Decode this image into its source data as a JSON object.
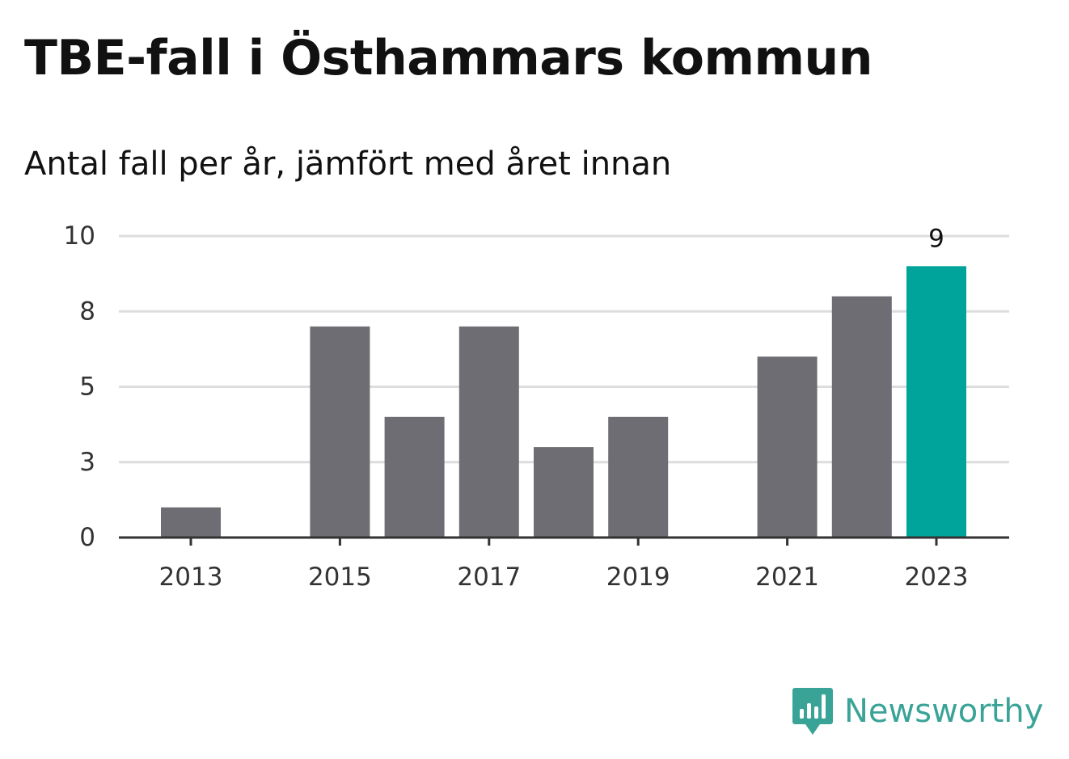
{
  "title": "TBE-fall i Östhammars kommun",
  "subtitle": "Antal fall per år, jämfört med året innan",
  "brand": {
    "name": "Newsworthy",
    "color": "#3aa397",
    "icon": "newsworthy-logo-icon"
  },
  "colors": {
    "bar": "#6e6d73",
    "highlight": "#00a49a",
    "grid": "#dddddd",
    "axis": "#333333"
  },
  "chart_data": {
    "type": "bar",
    "categories": [
      "2013",
      "2014",
      "2015",
      "2016",
      "2017",
      "2018",
      "2019",
      "2020",
      "2021",
      "2022",
      "2023"
    ],
    "values": [
      1,
      0,
      7,
      4,
      7,
      3,
      4,
      0,
      6,
      8,
      9
    ],
    "highlight_index": 10,
    "xtick_labels": [
      "2013",
      "",
      "2015",
      "",
      "2017",
      "",
      "2019",
      "",
      "2021",
      "",
      "2023"
    ],
    "ytick_labels": [
      "0",
      "3",
      "5",
      "8",
      "10"
    ],
    "ylim": [
      0,
      10
    ],
    "data_labels": [
      "",
      "",
      "",
      "",
      "",
      "",
      "",
      "",
      "",
      "",
      "9"
    ],
    "grid": true,
    "xlabel": "",
    "ylabel": ""
  }
}
